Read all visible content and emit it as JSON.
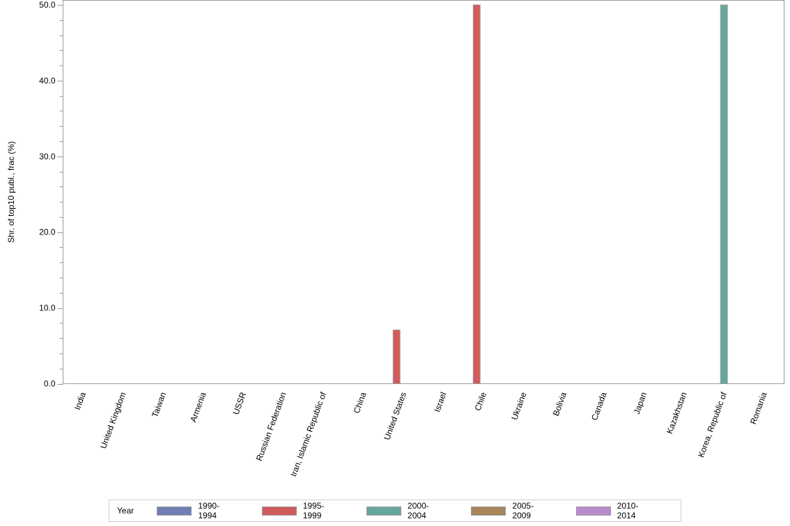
{
  "chart_data": {
    "type": "bar",
    "title": "",
    "xlabel": "",
    "ylabel": "Shr. of top10 publ., frac (%)",
    "ylim": [
      0,
      50
    ],
    "yticks": [
      "0.0",
      "10.0",
      "20.0",
      "30.0",
      "40.0",
      "50.0"
    ],
    "grid": false,
    "legend_position": "bottom",
    "legend_title": "Year",
    "categories": [
      "India",
      "United Kingdom",
      "Taiwan",
      "Armenia",
      "USSR",
      "Russian Federation",
      "Iran, Islamic Republic of",
      "China",
      "United States",
      "Israel",
      "Chile",
      "Ukraine",
      "Bolivia",
      "Canada",
      "Japan",
      "Kazakhstan",
      "Korea, Republic of",
      "Romania"
    ],
    "series": [
      {
        "name": "1990-1994",
        "color": "#6f7fb5",
        "values": [
          0,
          0,
          0,
          0,
          0,
          0,
          0,
          0,
          0,
          0,
          0,
          0,
          0,
          0,
          0,
          0,
          0,
          0
        ]
      },
      {
        "name": "1995-1999",
        "color": "#d05b5b",
        "values": [
          0,
          0,
          0,
          0,
          0,
          0,
          0,
          0,
          7.1,
          0,
          50,
          0,
          0,
          0,
          0,
          0,
          0,
          0
        ]
      },
      {
        "name": "2000-2004",
        "color": "#66a8a0",
        "values": [
          0,
          0,
          0,
          0,
          0,
          0,
          0,
          0,
          0,
          0,
          0,
          0,
          0,
          0,
          0,
          0,
          50,
          0
        ]
      },
      {
        "name": "2005-2009",
        "color": "#a8845a",
        "values": [
          0,
          0,
          0,
          0,
          0,
          0,
          0,
          0,
          0,
          0,
          0,
          0,
          0,
          0,
          0,
          0,
          0,
          0
        ]
      },
      {
        "name": "2010-2014",
        "color": "#b88ccc",
        "values": [
          0,
          0,
          0,
          0,
          0,
          0,
          0,
          0,
          0,
          0,
          0,
          0,
          0,
          0,
          0,
          0,
          0,
          0
        ]
      }
    ]
  }
}
